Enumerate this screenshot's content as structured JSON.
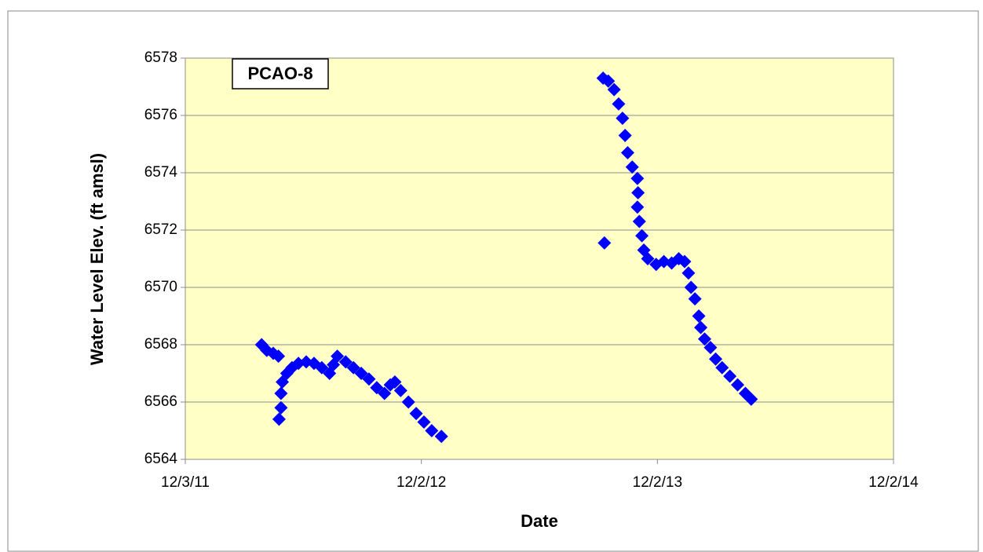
{
  "chart_data": {
    "type": "scatter",
    "annotation": "PCAO-8",
    "xlabel": "Date",
    "ylabel": "Water Level Elev. (ft amsl)",
    "grid": true,
    "xlim": [
      40880,
      41975
    ],
    "xticks": [
      {
        "value": 40880,
        "label": "12/3/11"
      },
      {
        "value": 41245,
        "label": "12/2/12"
      },
      {
        "value": 41610,
        "label": "12/2/13"
      },
      {
        "value": 41975,
        "label": "12/2/14"
      }
    ],
    "ylim": [
      6564,
      6578
    ],
    "yticks": [
      6564,
      6566,
      6568,
      6570,
      6572,
      6574,
      6576,
      6578
    ],
    "series": [
      {
        "color": "#0000ff",
        "x": [
          40998,
          41006,
          41016,
          41024,
          41025,
          41028,
          41028,
          41030,
          41037,
          41045,
          41055,
          41067,
          41079,
          41091,
          41103,
          41109,
          41115,
          41128,
          41140,
          41152,
          41164,
          41176,
          41188,
          41197,
          41204,
          41213,
          41225,
          41237,
          41249,
          41261,
          41276,
          41528,
          41526,
          41534,
          41543,
          41550,
          41556,
          41560,
          41564,
          41571,
          41579,
          41580,
          41579,
          41582,
          41586,
          41589,
          41595,
          41608,
          41620,
          41632,
          41643,
          41652,
          41658,
          41662,
          41668,
          41674,
          41677,
          41683,
          41692,
          41700,
          41710,
          41722,
          41734,
          41746,
          41755
        ],
        "values": [
          6568.0,
          6567.8,
          6567.7,
          6567.6,
          6565.4,
          6565.8,
          6566.3,
          6566.7,
          6567.0,
          6567.2,
          6567.35,
          6567.4,
          6567.35,
          6567.2,
          6567.0,
          6567.3,
          6567.6,
          6567.4,
          6567.2,
          6567.0,
          6566.8,
          6566.5,
          6566.3,
          6566.6,
          6566.7,
          6566.4,
          6566.0,
          6565.6,
          6565.3,
          6565.0,
          6564.8,
          6571.55,
          6577.3,
          6577.2,
          6576.9,
          6576.4,
          6575.9,
          6575.3,
          6574.7,
          6574.2,
          6573.8,
          6573.3,
          6572.8,
          6572.3,
          6571.8,
          6571.3,
          6571.0,
          6570.8,
          6570.9,
          6570.85,
          6571.0,
          6570.9,
          6570.5,
          6570.0,
          6569.6,
          6569.0,
          6568.6,
          6568.2,
          6567.9,
          6567.5,
          6567.2,
          6566.9,
          6566.6,
          6566.3,
          6566.1
        ]
      }
    ]
  }
}
